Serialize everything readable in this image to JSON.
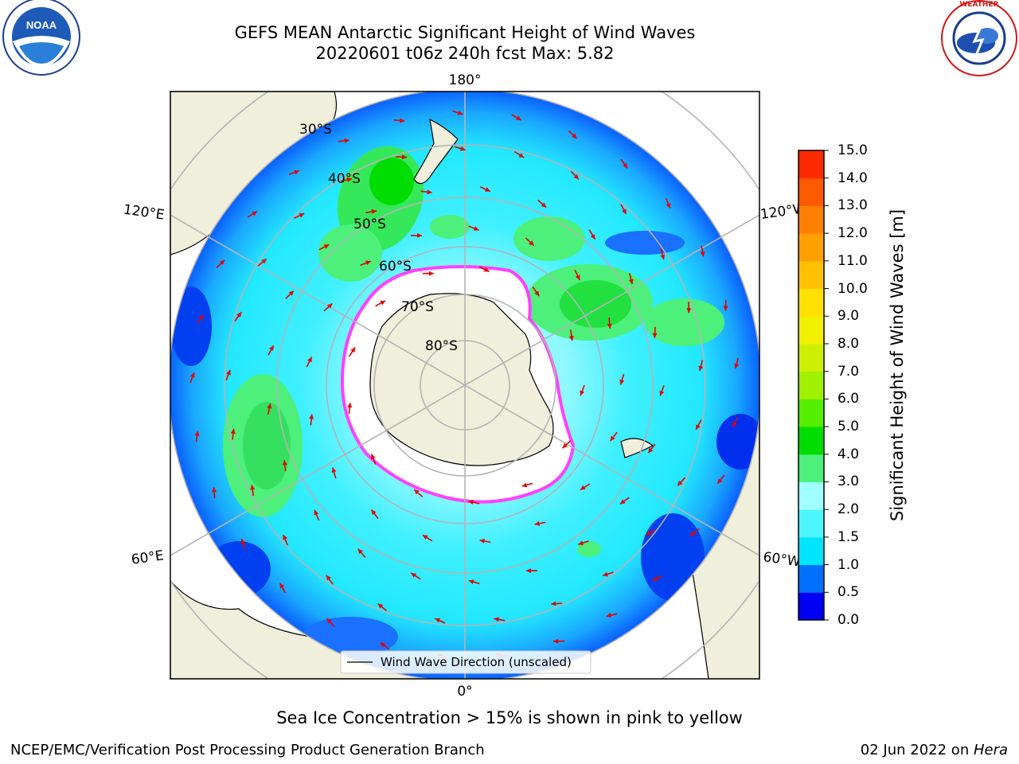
{
  "title": {
    "line1": "GEFS MEAN Antarctic Significant Height of Wind Waves",
    "line2": "20220601 t06z 240h fcst   Max: 5.82"
  },
  "map": {
    "projection": "south-polar-stereographic",
    "lon_labels": [
      "180°",
      "120°E",
      "120°W",
      "60°E",
      "60°W",
      "0°"
    ],
    "lat_labels": [
      "30°S",
      "40°S",
      "50°S",
      "60°S",
      "70°S",
      "80°S"
    ],
    "legend": "Wind Wave Direction (unscaled)"
  },
  "colorbar": {
    "label": "Significant Height of Wind Waves [m]",
    "ticks": [
      "15.0",
      "14.0",
      "13.0",
      "12.0",
      "11.0",
      "10.0",
      "9.0",
      "8.0",
      "7.0",
      "6.0",
      "5.0",
      "4.0",
      "3.0",
      "2.0",
      "1.5",
      "1.0",
      "0.5",
      "0.0"
    ],
    "colors": [
      "#0000f5",
      "#0070ff",
      "#00e5ff",
      "#4df5ff",
      "#a0ffff",
      "#4cf07a",
      "#00dd00",
      "#55ee00",
      "#a0f000",
      "#ccf000",
      "#f0f000",
      "#ffe000",
      "#ffc000",
      "#ffa000",
      "#ff8000",
      "#ff5a00",
      "#ff2a00"
    ]
  },
  "subtitle": "Sea Ice Concentration > 15% is shown in pink to yellow",
  "footer": {
    "left": "NCEP/EMC/Verification Post Processing Product Generation Branch",
    "right_date": "02 Jun 2022 on ",
    "right_host": "Hera"
  },
  "logos": {
    "noaa": "NOAA",
    "noaa_ring": "NATIONAL OCEANIC AND ATMOSPHERIC ADMINISTRATION · U.S. DEPARTMENT OF COMMERCE",
    "nws_ring": "NATIONAL WEATHER SERVICE"
  }
}
